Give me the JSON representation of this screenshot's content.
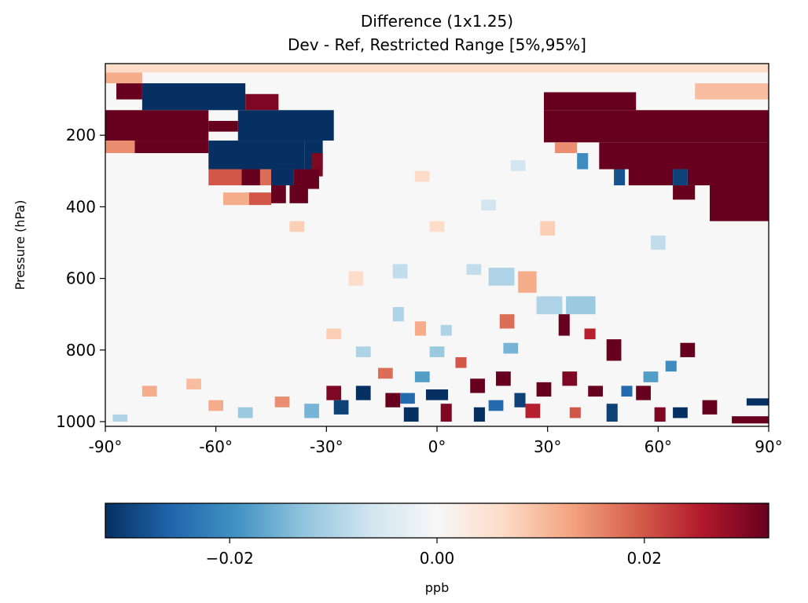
{
  "chart_data": {
    "type": "heatmap",
    "title": "Difference (1x1.25)",
    "subtitle": "Dev - Ref, Restricted Range [5%,95%]",
    "ylabel": "Pressure (hPa)",
    "xlabel": "",
    "x_ticks": [
      "-90°",
      "-60°",
      "-30°",
      "0°",
      "30°",
      "60°",
      "90°"
    ],
    "x_tick_values": [
      -90,
      -60,
      -30,
      0,
      30,
      60,
      90
    ],
    "y_ticks": [
      "200",
      "400",
      "600",
      "800",
      "1000"
    ],
    "y_tick_values": [
      200,
      400,
      600,
      800,
      1000
    ],
    "xlim": [
      -90,
      90
    ],
    "ylim": [
      1013,
      0
    ],
    "colormap": "RdBu_r",
    "colorbar": {
      "label": "ppb",
      "ticks": [
        "−0.02",
        "0.00",
        "0.02"
      ],
      "tick_values": [
        -0.02,
        0.0,
        0.02
      ],
      "range": [
        -0.032,
        0.032
      ],
      "orientation": "horizontal",
      "colors": [
        "#053061",
        "#2166ac",
        "#4393c3",
        "#92c5de",
        "#d1e5f0",
        "#f7f7f7",
        "#fddbc7",
        "#f4a582",
        "#d6604d",
        "#b2182b",
        "#67001f"
      ]
    },
    "cells": [
      {
        "x": [
          -90,
          -62
        ],
        "y": [
          130,
          215
        ],
        "value": 0.032
      },
      {
        "x": [
          -90,
          -82
        ],
        "y": [
          215,
          250
        ],
        "value": 0.015
      },
      {
        "x": [
          -82,
          -62
        ],
        "y": [
          215,
          250
        ],
        "value": 0.032
      },
      {
        "x": [
          -87,
          -80
        ],
        "y": [
          55,
          100
        ],
        "value": 0.032
      },
      {
        "x": [
          -80,
          -52
        ],
        "y": [
          55,
          130
        ],
        "value": -0.032
      },
      {
        "x": [
          -52,
          -43
        ],
        "y": [
          85,
          130
        ],
        "value": 0.03
      },
      {
        "x": [
          -54,
          -28
        ],
        "y": [
          130,
          215
        ],
        "value": -0.032
      },
      {
        "x": [
          -62,
          -54
        ],
        "y": [
          160,
          190
        ],
        "value": 0.032
      },
      {
        "x": [
          -62,
          -36
        ],
        "y": [
          215,
          295
        ],
        "value": -0.032
      },
      {
        "x": [
          -36,
          -31
        ],
        "y": [
          215,
          295
        ],
        "value": -0.032
      },
      {
        "x": [
          -34,
          -31
        ],
        "y": [
          250,
          315
        ],
        "value": 0.03
      },
      {
        "x": [
          -62,
          -53
        ],
        "y": [
          295,
          340
        ],
        "value": 0.02
      },
      {
        "x": [
          -53,
          -48
        ],
        "y": [
          295,
          340
        ],
        "value": 0.032
      },
      {
        "x": [
          -48,
          -45
        ],
        "y": [
          295,
          340
        ],
        "value": 0.018
      },
      {
        "x": [
          -45,
          -39
        ],
        "y": [
          295,
          340
        ],
        "value": -0.032
      },
      {
        "x": [
          -39,
          -32
        ],
        "y": [
          295,
          350
        ],
        "value": 0.032
      },
      {
        "x": [
          -40,
          -35
        ],
        "y": [
          340,
          390
        ],
        "value": 0.032
      },
      {
        "x": [
          -45,
          -41
        ],
        "y": [
          340,
          390
        ],
        "value": 0.032
      },
      {
        "x": [
          -58,
          -51
        ],
        "y": [
          360,
          395
        ],
        "value": 0.012
      },
      {
        "x": [
          -51,
          -45
        ],
        "y": [
          360,
          395
        ],
        "value": 0.02
      },
      {
        "x": [
          29,
          54
        ],
        "y": [
          80,
          130
        ],
        "value": 0.032
      },
      {
        "x": [
          29,
          90
        ],
        "y": [
          130,
          220
        ],
        "value": 0.032
      },
      {
        "x": [
          44,
          90
        ],
        "y": [
          220,
          295
        ],
        "value": 0.032
      },
      {
        "x": [
          52,
          64
        ],
        "y": [
          295,
          340
        ],
        "value": 0.032
      },
      {
        "x": [
          48,
          51
        ],
        "y": [
          295,
          340
        ],
        "value": -0.028
      },
      {
        "x": [
          68,
          74
        ],
        "y": [
          295,
          340
        ],
        "value": 0.032
      },
      {
        "x": [
          64,
          68
        ],
        "y": [
          295,
          340
        ],
        "value": -0.03
      },
      {
        "x": [
          74,
          90
        ],
        "y": [
          295,
          440
        ],
        "value": 0.032
      },
      {
        "x": [
          64,
          70
        ],
        "y": [
          340,
          380
        ],
        "value": 0.032
      },
      {
        "x": [
          32,
          38
        ],
        "y": [
          220,
          250
        ],
        "value": 0.015
      },
      {
        "x": [
          38,
          41
        ],
        "y": [
          250,
          295
        ],
        "value": -0.02
      },
      {
        "x": [
          -90,
          -80
        ],
        "y": [
          20,
          55
        ],
        "value": 0.012
      },
      {
        "x": [
          70,
          90
        ],
        "y": [
          55,
          100
        ],
        "value": 0.01
      },
      {
        "x": [
          -90,
          90
        ],
        "y": [
          0,
          25
        ],
        "value": 0.006
      },
      {
        "x": [
          14,
          21
        ],
        "y": [
          570,
          620
        ],
        "value": -0.01
      },
      {
        "x": [
          22,
          27
        ],
        "y": [
          580,
          640
        ],
        "value": 0.012
      },
      {
        "x": [
          27,
          34
        ],
        "y": [
          650,
          700
        ],
        "value": -0.01
      },
      {
        "x": [
          35,
          43
        ],
        "y": [
          650,
          700
        ],
        "value": -0.012
      },
      {
        "x": [
          17,
          21
        ],
        "y": [
          700,
          740
        ],
        "value": 0.018
      },
      {
        "x": [
          33,
          36
        ],
        "y": [
          700,
          760
        ],
        "value": 0.032
      },
      {
        "x": [
          40,
          43
        ],
        "y": [
          740,
          770
        ],
        "value": 0.025
      },
      {
        "x": [
          46,
          50
        ],
        "y": [
          770,
          830
        ],
        "value": 0.032
      },
      {
        "x": [
          66,
          70
        ],
        "y": [
          780,
          820
        ],
        "value": 0.032
      },
      {
        "x": [
          62,
          65
        ],
        "y": [
          830,
          860
        ],
        "value": -0.02
      },
      {
        "x": [
          -30,
          -26
        ],
        "y": [
          900,
          940
        ],
        "value": 0.03
      },
      {
        "x": [
          -28,
          -24
        ],
        "y": [
          940,
          980
        ],
        "value": -0.03
      },
      {
        "x": [
          -22,
          -18
        ],
        "y": [
          900,
          940
        ],
        "value": -0.032
      },
      {
        "x": [
          -14,
          -10
        ],
        "y": [
          920,
          960
        ],
        "value": 0.032
      },
      {
        "x": [
          -9,
          -5
        ],
        "y": [
          960,
          1000
        ],
        "value": -0.032
      },
      {
        "x": [
          -3,
          3
        ],
        "y": [
          910,
          940
        ],
        "value": -0.032
      },
      {
        "x": [
          1,
          4
        ],
        "y": [
          950,
          1000
        ],
        "value": 0.03
      },
      {
        "x": [
          9,
          13
        ],
        "y": [
          880,
          920
        ],
        "value": 0.032
      },
      {
        "x": [
          10,
          13
        ],
        "y": [
          960,
          1000
        ],
        "value": -0.032
      },
      {
        "x": [
          16,
          20
        ],
        "y": [
          860,
          900
        ],
        "value": 0.032
      },
      {
        "x": [
          21,
          24
        ],
        "y": [
          920,
          960
        ],
        "value": -0.03
      },
      {
        "x": [
          27,
          31
        ],
        "y": [
          890,
          930
        ],
        "value": 0.032
      },
      {
        "x": [
          34,
          38
        ],
        "y": [
          860,
          900
        ],
        "value": 0.03
      },
      {
        "x": [
          41,
          45
        ],
        "y": [
          900,
          930
        ],
        "value": 0.032
      },
      {
        "x": [
          46,
          49
        ],
        "y": [
          950,
          1000
        ],
        "value": -0.03
      },
      {
        "x": [
          54,
          58
        ],
        "y": [
          900,
          940
        ],
        "value": 0.032
      },
      {
        "x": [
          59,
          62
        ],
        "y": [
          960,
          1000
        ],
        "value": 0.03
      },
      {
        "x": [
          64,
          68
        ],
        "y": [
          960,
          990
        ],
        "value": -0.032
      },
      {
        "x": [
          72,
          76
        ],
        "y": [
          940,
          980
        ],
        "value": 0.032
      },
      {
        "x": [
          84,
          90
        ],
        "y": [
          935,
          955
        ],
        "value": -0.032
      },
      {
        "x": [
          80,
          90
        ],
        "y": [
          985,
          1005
        ],
        "value": 0.032
      },
      {
        "x": [
          -54,
          -50
        ],
        "y": [
          960,
          990
        ],
        "value": -0.012
      },
      {
        "x": [
          -62,
          -58
        ],
        "y": [
          940,
          970
        ],
        "value": 0.012
      },
      {
        "x": [
          -44,
          -40
        ],
        "y": [
          930,
          960
        ],
        "value": 0.015
      },
      {
        "x": [
          -36,
          -32
        ],
        "y": [
          950,
          990
        ],
        "value": -0.015
      },
      {
        "x": [
          -16,
          -12
        ],
        "y": [
          850,
          880
        ],
        "value": 0.018
      },
      {
        "x": [
          -6,
          -2
        ],
        "y": [
          860,
          890
        ],
        "value": -0.018
      },
      {
        "x": [
          5,
          8
        ],
        "y": [
          820,
          850
        ],
        "value": 0.02
      },
      {
        "x": [
          -2,
          2
        ],
        "y": [
          790,
          820
        ],
        "value": -0.012
      },
      {
        "x": [
          -6,
          -3
        ],
        "y": [
          720,
          760
        ],
        "value": 0.012
      },
      {
        "x": [
          1,
          4
        ],
        "y": [
          730,
          760
        ],
        "value": -0.01
      },
      {
        "x": [
          -12,
          -9
        ],
        "y": [
          680,
          720
        ],
        "value": -0.01
      },
      {
        "x": [
          -30,
          -26
        ],
        "y": [
          740,
          770
        ],
        "value": 0.008
      },
      {
        "x": [
          -22,
          -18
        ],
        "y": [
          790,
          820
        ],
        "value": -0.01
      },
      {
        "x": [
          -68,
          -64
        ],
        "y": [
          880,
          910
        ],
        "value": 0.01
      },
      {
        "x": [
          -80,
          -76
        ],
        "y": [
          900,
          930
        ],
        "value": 0.012
      },
      {
        "x": [
          -88,
          -84
        ],
        "y": [
          980,
          1000
        ],
        "value": -0.01
      },
      {
        "x": [
          -10,
          -6
        ],
        "y": [
          920,
          950
        ],
        "value": -0.025
      },
      {
        "x": [
          14,
          18
        ],
        "y": [
          940,
          970
        ],
        "value": -0.025
      },
      {
        "x": [
          24,
          28
        ],
        "y": [
          950,
          990
        ],
        "value": 0.025
      },
      {
        "x": [
          50,
          53
        ],
        "y": [
          900,
          930
        ],
        "value": -0.025
      },
      {
        "x": [
          36,
          39
        ],
        "y": [
          960,
          990
        ],
        "value": 0.02
      },
      {
        "x": [
          56,
          60
        ],
        "y": [
          860,
          890
        ],
        "value": -0.018
      },
      {
        "x": [
          18,
          22
        ],
        "y": [
          780,
          810
        ],
        "value": -0.015
      },
      {
        "x": [
          -12,
          -8
        ],
        "y": [
          560,
          600
        ],
        "value": -0.008
      },
      {
        "x": [
          -24,
          -20
        ],
        "y": [
          580,
          620
        ],
        "value": 0.006
      },
      {
        "x": [
          8,
          12
        ],
        "y": [
          560,
          590
        ],
        "value": -0.008
      },
      {
        "x": [
          -2,
          2
        ],
        "y": [
          440,
          470
        ],
        "value": 0.006
      },
      {
        "x": [
          28,
          32
        ],
        "y": [
          440,
          480
        ],
        "value": 0.008
      },
      {
        "x": [
          58,
          62
        ],
        "y": [
          480,
          520
        ],
        "value": -0.008
      },
      {
        "x": [
          -40,
          -36
        ],
        "y": [
          440,
          470
        ],
        "value": 0.008
      },
      {
        "x": [
          12,
          16
        ],
        "y": [
          380,
          410
        ],
        "value": -0.006
      },
      {
        "x": [
          -6,
          -2
        ],
        "y": [
          300,
          330
        ],
        "value": 0.006
      },
      {
        "x": [
          20,
          24
        ],
        "y": [
          270,
          300
        ],
        "value": -0.006
      }
    ]
  }
}
